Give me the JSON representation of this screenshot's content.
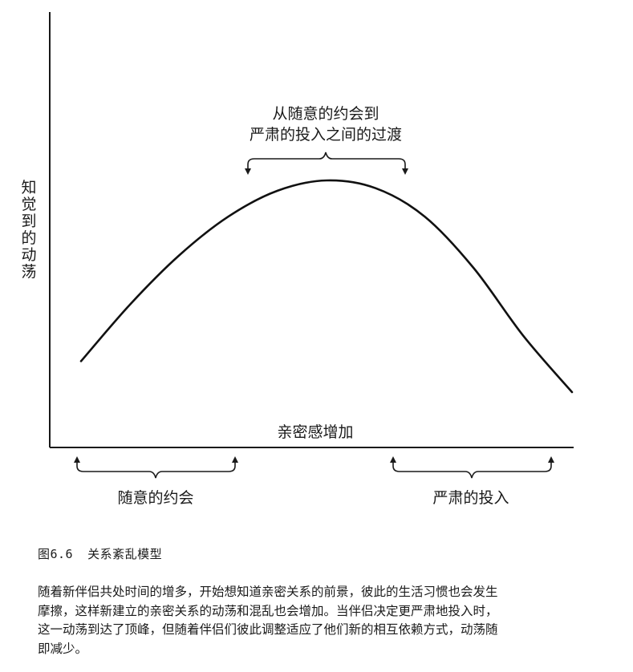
{
  "chart_data": {
    "type": "line",
    "xlabel": "亲密感增加",
    "ylabel": "知觉到的动荡",
    "x": [
      0,
      0.1,
      0.2,
      0.3,
      0.4,
      0.5,
      0.6,
      0.7,
      0.8,
      0.9,
      1.0
    ],
    "series": [
      {
        "values": [
          0.3,
          0.52,
          0.71,
          0.86,
          0.96,
          1.0,
          0.97,
          0.86,
          0.66,
          0.4,
          0.18
        ]
      }
    ],
    "annotations": {
      "peak": [
        "从随意的约会到",
        "严肃的投入之间的过渡"
      ],
      "left": "随意的约会",
      "right": "严肃的投入"
    }
  },
  "caption": {
    "number": "图6.6",
    "title": "关系紊乱模型"
  },
  "body": {
    "lines": [
      "随着新伴侣共处时间的增多，开始想知道亲密关系的前景，彼此的生活习惯也会发生",
      "摩擦，这样新建立的亲密关系的动荡和混乱也会增加。当伴侣决定更严肃地投入时，",
      "这一动荡到达了顶峰，但随着伴侣们彼此调整适应了他们新的相互依赖方式，动荡随",
      "即减少。"
    ]
  }
}
